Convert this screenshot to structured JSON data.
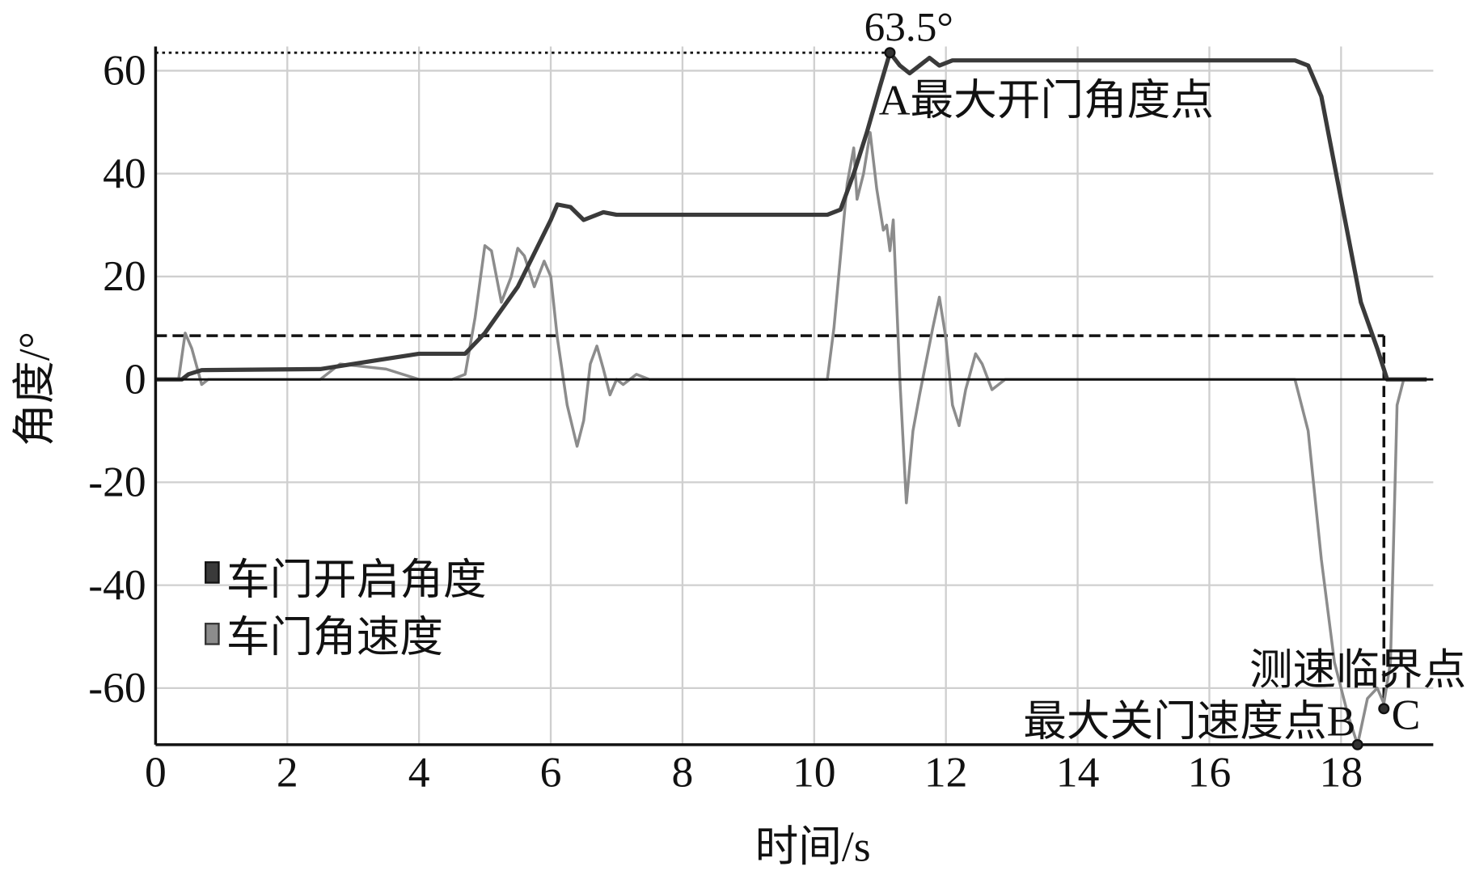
{
  "chart_data": {
    "type": "line",
    "title": "",
    "xlabel": "时间/s",
    "ylabel": "角度/°",
    "xlim": [
      0,
      19.4
    ],
    "ylim": [
      -71,
      64.7
    ],
    "xticks": [
      0,
      2,
      4,
      6,
      8,
      10,
      12,
      14,
      16,
      18
    ],
    "yticks": [
      -60,
      -40,
      -20,
      0,
      20,
      40,
      60
    ],
    "grid": true,
    "legend_placement": "lower-left",
    "series": [
      {
        "name": "车门开启角度",
        "color": "#3a3a3a",
        "x": [
          0,
          0.4,
          0.5,
          0.7,
          2.5,
          3,
          3.5,
          4,
          4.7,
          5,
          5.5,
          6,
          6.1,
          6.3,
          6.5,
          6.8,
          7,
          10.2,
          10.4,
          10.6,
          10.8,
          11,
          11.15,
          11.3,
          11.45,
          11.6,
          11.75,
          11.9,
          12.1,
          17.3,
          17.5,
          17.7,
          18,
          18.3,
          18.55,
          18.7,
          19.3
        ],
        "y": [
          0,
          0,
          1,
          1.8,
          2,
          3,
          4,
          5,
          5,
          9,
          18,
          31,
          34,
          33.5,
          31,
          32.5,
          32,
          32,
          33,
          40,
          48,
          57,
          63.5,
          61,
          59.5,
          61,
          62.5,
          61,
          62,
          62,
          61,
          55,
          35,
          15,
          6,
          0,
          0
        ]
      },
      {
        "name": "车门角速度",
        "color": "#8c8c8c",
        "x": [
          0,
          0.35,
          0.45,
          0.55,
          0.7,
          0.8,
          2.5,
          2.8,
          3.5,
          4,
          4.5,
          4.7,
          4.85,
          5,
          5.1,
          5.25,
          5.4,
          5.5,
          5.6,
          5.75,
          5.9,
          6.0,
          6.1,
          6.25,
          6.4,
          6.5,
          6.6,
          6.7,
          6.8,
          6.9,
          7.0,
          7.1,
          7.3,
          7.5,
          10.2,
          10.3,
          10.5,
          10.6,
          10.65,
          10.75,
          10.85,
          10.95,
          11.05,
          11.1,
          11.15,
          11.2,
          11.3,
          11.4,
          11.5,
          11.6,
          11.8,
          11.9,
          12,
          12.1,
          12.2,
          12.3,
          12.45,
          12.55,
          12.7,
          12.9,
          17.3,
          17.5,
          17.7,
          17.9,
          18.1,
          18.25,
          18.4,
          18.55,
          18.65,
          18.75,
          18.85,
          18.95,
          19.3
        ],
        "y": [
          0,
          0,
          9,
          6,
          -1,
          0,
          0,
          3,
          2,
          0,
          0,
          1,
          12,
          26,
          25,
          15,
          20,
          25.5,
          24,
          18,
          23,
          20,
          8,
          -5,
          -13,
          -8,
          3,
          6.5,
          2,
          -3,
          0,
          -1,
          1,
          0,
          0,
          10,
          38,
          45,
          35,
          40,
          48,
          37,
          29,
          30,
          25,
          31,
          0,
          -24,
          -10,
          -3,
          10,
          16,
          8,
          -5,
          -9,
          -2,
          5,
          3,
          -2,
          0,
          0,
          -10,
          -35,
          -55,
          -65,
          -71,
          -62,
          -60,
          -63,
          -55,
          -5,
          0,
          0
        ]
      }
    ],
    "reference_lines": {
      "dotted_max_angle": 63.5,
      "dashed_threshold": 8.5,
      "dashed_threshold_end_x": 18.65
    },
    "annotations": [
      {
        "id": "A",
        "x": 11.15,
        "y": 63.5,
        "value_label": "63.5°",
        "label": "A最大开门角度点"
      },
      {
        "id": "B",
        "x": 18.25,
        "y": -71,
        "label": "最大关门速度点B"
      },
      {
        "id": "C",
        "x": 18.65,
        "y": -64,
        "label": "C",
        "caption": "测速临界点"
      }
    ]
  }
}
